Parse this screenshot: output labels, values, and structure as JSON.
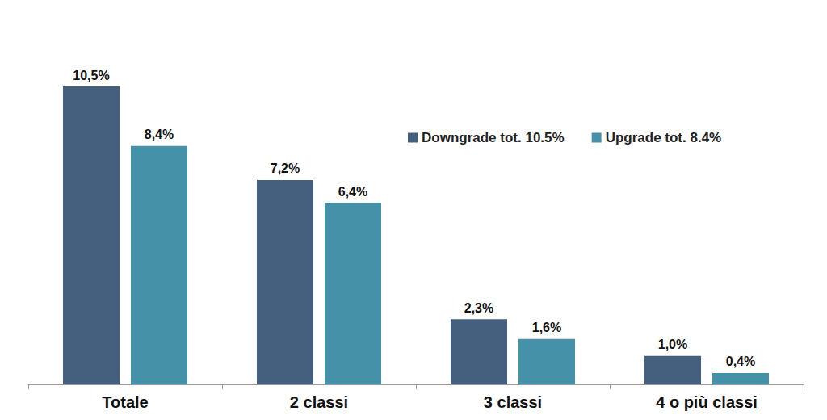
{
  "chart_data": {
    "type": "bar",
    "categories": [
      "Totale",
      "2 classi",
      "3 classi",
      "4 o più classi"
    ],
    "series": [
      {
        "name": "Downgrade tot. 10.5%",
        "color": "#44607e",
        "values": [
          10.5,
          7.2,
          2.3,
          1.0
        ],
        "value_labels": [
          "10,5%",
          "7,2%",
          "2,3%",
          "1,0%"
        ]
      },
      {
        "name": "Upgrade tot. 8.4%",
        "color": "#4592a8",
        "values": [
          8.4,
          6.4,
          1.6,
          0.4
        ],
        "value_labels": [
          "8,4%",
          "6,4%",
          "1,6%",
          "0,4%"
        ]
      }
    ],
    "ylim": [
      0,
      10.5
    ],
    "grid": false,
    "legend": "upper right",
    "data_labels": true,
    "tick_labels": "x"
  }
}
